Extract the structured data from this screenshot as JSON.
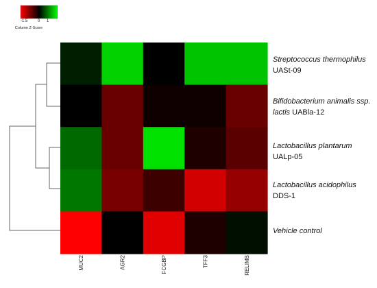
{
  "chart_data": {
    "type": "heatmap",
    "columns": [
      "MUC2",
      "AGR2",
      "FCGBP",
      "TFF3",
      "RELIMB"
    ],
    "rows": [
      {
        "organism": "Streptococcus thermophilus",
        "strain": "UASt-09",
        "italic_line2": ""
      },
      {
        "organism": "Bifidobacterium animalis ssp.",
        "strain": "UABla-12",
        "italic_line2": "lactis"
      },
      {
        "organism": "Lactobacillus plantarum",
        "strain": "UALp-05",
        "italic_line2": ""
      },
      {
        "organism": "Lactobacillus acidophilus",
        "strain": "DDS-1",
        "italic_line2": ""
      },
      {
        "organism": "Vehicle control",
        "strain": "",
        "italic_line2": ""
      }
    ],
    "values": [
      [
        0.2,
        1.4,
        0.0,
        1.3,
        1.3
      ],
      [
        0.0,
        -0.7,
        -0.1,
        -0.1,
        -0.7
      ],
      [
        0.7,
        -0.7,
        1.5,
        -0.2,
        -0.6
      ],
      [
        0.8,
        -0.8,
        -0.4,
        -1.4,
        -1.0
      ],
      [
        -1.7,
        0.0,
        -1.5,
        -0.2,
        0.1
      ]
    ],
    "scale": {
      "min": -1.7,
      "max": 1.7,
      "low_color": "#ff0000",
      "mid_color": "#000000",
      "high_color": "#00ff00"
    },
    "legend": {
      "title": "Column Z-Score",
      "ticks": [
        "-1.5",
        "0",
        "1"
      ],
      "tick_values": [
        -1.5,
        0,
        1
      ]
    },
    "dendrogram": "rows clustered: (((UASt-09, UABla-12), (UALp-05, DDS-1)), Vehicle control)"
  }
}
